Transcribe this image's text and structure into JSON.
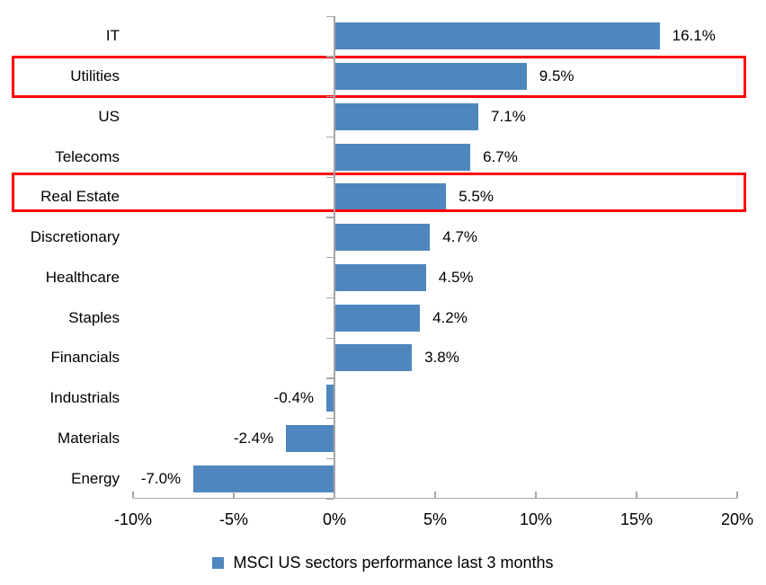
{
  "chart_data": {
    "type": "bar",
    "orientation": "horizontal",
    "title": "",
    "categories": [
      "IT",
      "Utilities",
      "US",
      "Telecoms",
      "Real Estate",
      "Discretionary",
      "Healthcare",
      "Staples",
      "Financials",
      "Industrials",
      "Materials",
      "Energy"
    ],
    "values": [
      16.1,
      9.5,
      7.1,
      6.7,
      5.5,
      4.7,
      4.5,
      4.2,
      3.8,
      -0.4,
      -2.4,
      -7.0
    ],
    "value_labels": [
      "16.1%",
      "9.5%",
      "7.1%",
      "6.7%",
      "5.5%",
      "4.7%",
      "4.5%",
      "4.2%",
      "3.8%",
      "-0.4%",
      "-2.4%",
      "-7.0%"
    ],
    "xlabel": "",
    "ylabel": "",
    "xlim": [
      -10,
      20
    ],
    "x_tick_values": [
      -10,
      -5,
      0,
      5,
      10,
      15,
      20
    ],
    "x_tick_labels": [
      "-10%",
      "-5%",
      "0%",
      "5%",
      "10%",
      "15%",
      "20%"
    ],
    "grid": false,
    "legend_position": "bottom",
    "legend_label": "MSCI US sectors performance last 3 months",
    "bar_color": "#4e86bd",
    "axis_color": "#a6a6a6",
    "highlight_color": "#ff0000",
    "highlighted_categories": [
      "Utilities",
      "Real Estate"
    ]
  }
}
